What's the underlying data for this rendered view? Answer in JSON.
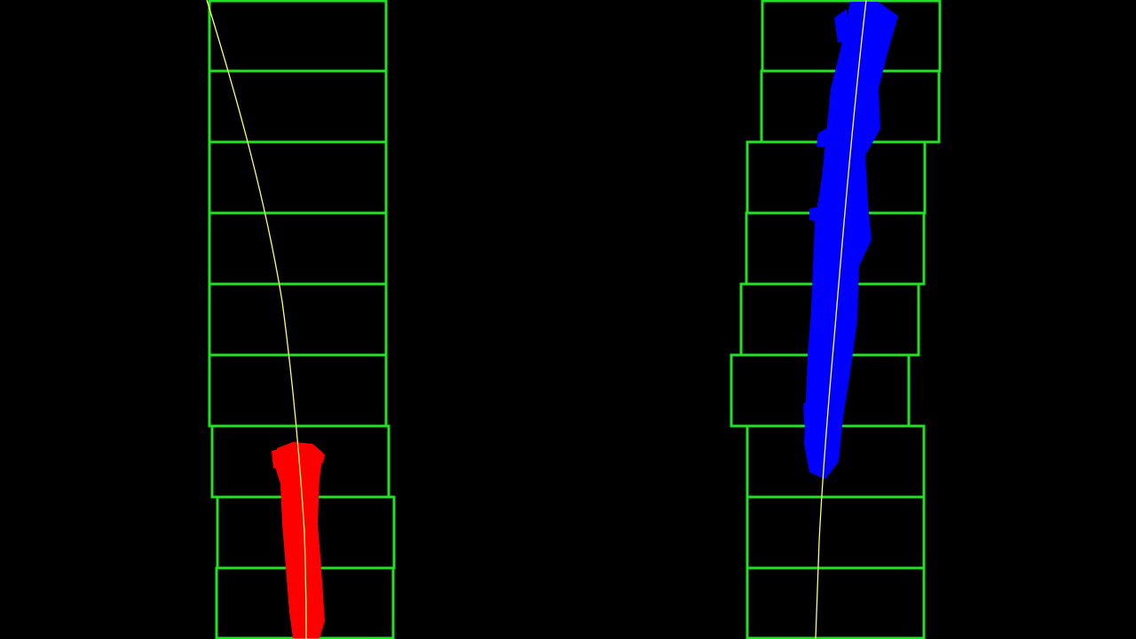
{
  "image": {
    "background_color": "#000000",
    "window_box_color": "#22e022",
    "left_lane_pixel_color": "#ff0000",
    "right_lane_pixel_color": "#0000ff",
    "fit_line_color": "#ffff66",
    "left_lane_label": "",
    "right_lane_label": ""
  }
}
